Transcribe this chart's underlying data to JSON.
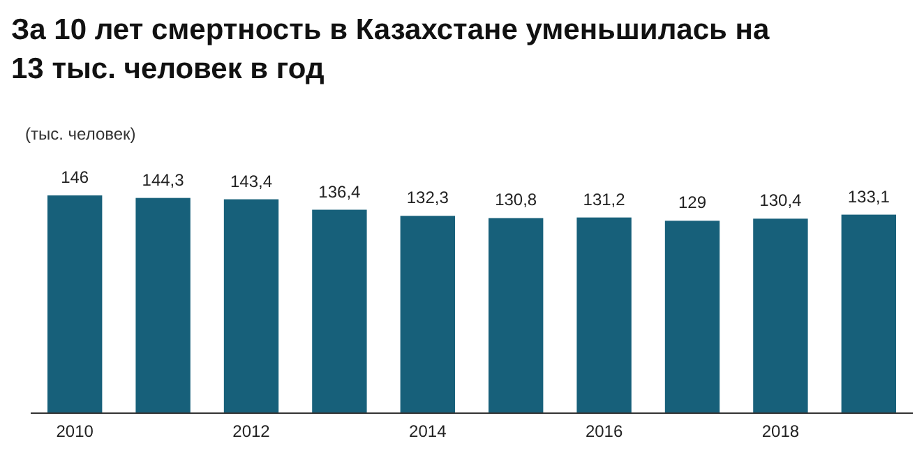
{
  "chart_data": {
    "type": "bar",
    "title": "За 10 лет смертность в Казахстане уменьшилась на 13 тыс. человек в год",
    "subtitle": "(тыс. человек)",
    "categories": [
      "2010",
      null,
      "2012",
      null,
      "2014",
      null,
      "2016",
      null,
      "2018",
      null
    ],
    "values": [
      146,
      144.3,
      143.4,
      136.4,
      132.3,
      130.8,
      131.2,
      129,
      130.4,
      133.1
    ],
    "value_labels": [
      "146",
      "144,3",
      "143,4",
      "136,4",
      "132,3",
      "130,8",
      "131,2",
      "129",
      "130,4",
      "133,1"
    ],
    "color": "#17607a",
    "ylim": [
      0,
      146
    ],
    "tick_labels": "x",
    "grid": false
  }
}
